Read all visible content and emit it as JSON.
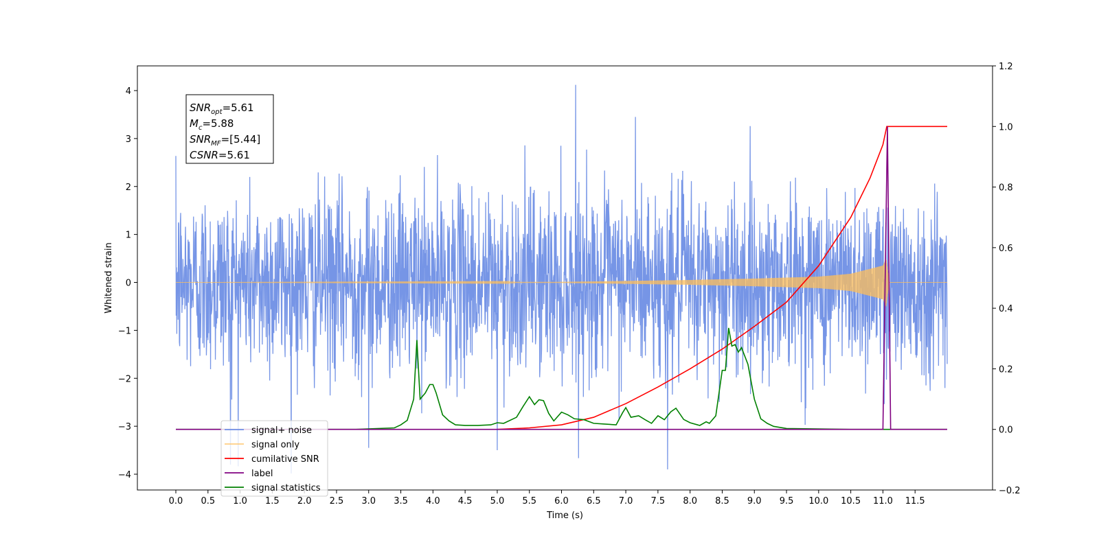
{
  "chart_data": {
    "type": "line",
    "xlabel": "Time (s)",
    "ylabel": "Whitened strain",
    "xlim": [
      -0.6,
      12.6
    ],
    "ylim": [
      -4.3,
      4.5
    ],
    "y2lim": [
      -0.2,
      1.2
    ],
    "x_ticks": [
      "0.0",
      "0.5",
      "1.0",
      "1.5",
      "2.0",
      "2.5",
      "3.0",
      "3.5",
      "4.0",
      "4.5",
      "5.0",
      "5.5",
      "6.0",
      "6.5",
      "7.0",
      "7.5",
      "8.0",
      "8.5",
      "9.0",
      "9.5",
      "10.0",
      "10.5",
      "11.0",
      "11.5"
    ],
    "y_ticks": [
      "4",
      "3",
      "2",
      "1",
      "0",
      "−1",
      "−2",
      "−3",
      "−4"
    ],
    "y2_ticks": [
      "1.2",
      "1.0",
      "0.8",
      "0.6",
      "0.4",
      "0.2",
      "0.0",
      "−0.2"
    ],
    "legend_position": "lower-left",
    "grid": false,
    "annotation": {
      "lines": [
        {
          "sym": "SNR",
          "sub": "opt",
          "val": "=5.61"
        },
        {
          "sym": "M",
          "sub": "c",
          "val": "=5.88"
        },
        {
          "sym": "SNR",
          "sub": "MF",
          "val": "=[5.44]"
        },
        {
          "sym": "CSNR",
          "sub": "",
          "val": "=5.61"
        }
      ]
    },
    "series": [
      {
        "name": "signal+ noise",
        "color": "#6f8fe5",
        "axis": "left",
        "description": "noisy whitened strain, roughly gaussian with std ~1, x from 0 to 12",
        "x_range": [
          0.0,
          12.0
        ],
        "noise_std": 0.95,
        "extreme_spikes": [
          [
            6.22,
            4.12
          ],
          [
            7.65,
            -3.9
          ],
          [
            0.85,
            -3.8
          ],
          [
            5.0,
            -3.5
          ],
          [
            7.15,
            3.45
          ],
          [
            3.0,
            -3.45
          ]
        ]
      },
      {
        "name": "signal only",
        "color": "#ffbf5a",
        "axis": "left",
        "description": "chirp signal envelope growing until merger near 11.05 s",
        "envelope": {
          "x": [
            0.0,
            6.0,
            7.0,
            8.0,
            9.0,
            10.0,
            10.5,
            11.0,
            11.05,
            11.1,
            12.0
          ],
          "amp": [
            0.0,
            0.01,
            0.03,
            0.05,
            0.08,
            0.12,
            0.18,
            0.35,
            0.5,
            0.0,
            0.0
          ]
        }
      },
      {
        "name": "cumilative SNR",
        "color": "#ff0000",
        "axis": "right",
        "x": [
          5.0,
          5.5,
          6.0,
          6.5,
          7.0,
          7.5,
          8.0,
          8.5,
          9.0,
          9.5,
          10.0,
          10.5,
          10.8,
          11.0,
          11.06,
          11.1,
          11.5,
          12.0
        ],
        "y": [
          0.0,
          0.005,
          0.015,
          0.04,
          0.085,
          0.14,
          0.2,
          0.265,
          0.34,
          0.42,
          0.54,
          0.7,
          0.83,
          0.94,
          1.0,
          1.0,
          1.0,
          1.0
        ]
      },
      {
        "name": "label",
        "color": "#800080",
        "axis": "right",
        "x": [
          0.0,
          11.0,
          11.07,
          11.12,
          12.0
        ],
        "y": [
          0.0,
          0.0,
          1.0,
          0.0,
          0.0
        ]
      },
      {
        "name": "signal statistics",
        "color": "#008000",
        "axis": "right",
        "x": [
          0.0,
          2.8,
          3.4,
          3.5,
          3.6,
          3.7,
          3.75,
          3.8,
          3.88,
          3.95,
          4.0,
          4.05,
          4.15,
          4.25,
          4.35,
          4.5,
          4.7,
          4.9,
          5.0,
          5.1,
          5.3,
          5.4,
          5.5,
          5.58,
          5.65,
          5.72,
          5.8,
          5.88,
          6.0,
          6.1,
          6.2,
          6.35,
          6.5,
          6.65,
          6.85,
          6.95,
          7.0,
          7.08,
          7.2,
          7.3,
          7.4,
          7.5,
          7.6,
          7.7,
          7.78,
          7.9,
          8.0,
          8.15,
          8.25,
          8.3,
          8.4,
          8.5,
          8.55,
          8.6,
          8.65,
          8.7,
          8.75,
          8.8,
          8.9,
          9.0,
          9.1,
          9.2,
          9.3,
          9.5,
          9.8,
          10.5,
          11.0,
          12.0
        ],
        "y": [
          0.0,
          0.0,
          0.005,
          0.015,
          0.03,
          0.1,
          0.295,
          0.1,
          0.12,
          0.148,
          0.148,
          0.12,
          0.048,
          0.028,
          0.015,
          0.013,
          0.013,
          0.015,
          0.022,
          0.02,
          0.04,
          0.075,
          0.108,
          0.082,
          0.098,
          0.095,
          0.053,
          0.028,
          0.057,
          0.048,
          0.035,
          0.032,
          0.02,
          0.018,
          0.015,
          0.055,
          0.072,
          0.04,
          0.045,
          0.032,
          0.02,
          0.045,
          0.032,
          0.058,
          0.07,
          0.033,
          0.022,
          0.013,
          0.025,
          0.02,
          0.045,
          0.195,
          0.195,
          0.335,
          0.275,
          0.28,
          0.255,
          0.27,
          0.215,
          0.1,
          0.035,
          0.02,
          0.01,
          0.003,
          0.002,
          0.0,
          0.0,
          0.0
        ]
      }
    ]
  }
}
